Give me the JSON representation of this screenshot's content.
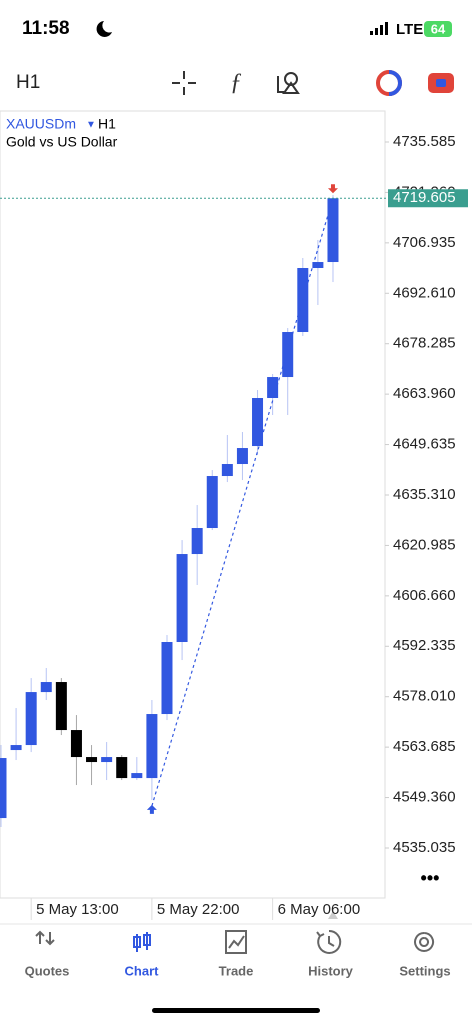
{
  "status_bar": {
    "time": "11:58",
    "network": "LTE",
    "battery": "64"
  },
  "toolbar": {
    "timeframe": "H1"
  },
  "chart_data": {
    "type": "candlestick",
    "symbol": "XAUUSDm",
    "timeframe": "H1",
    "description": "Gold vs US Dollar",
    "categories": [
      null,
      null,
      "5 May 13:00",
      null,
      null,
      null,
      null,
      null,
      null,
      null,
      "5 May 22:00",
      null,
      null,
      null,
      null,
      null,
      null,
      null,
      "6 May 06:00",
      null,
      null,
      null,
      null
    ],
    "open": [
      4543.54,
      4562.86,
      4564.28,
      4579.33,
      4582.18,
      4568.54,
      4560.87,
      4559.45,
      4560.87,
      4554.9,
      4554.9,
      4573.09,
      4593.55,
      4618.54,
      4625.93,
      4640.7,
      4644.11,
      4649.22,
      4662.86,
      4668.82,
      4681.61,
      4699.79,
      4701.49
    ],
    "high": [
      4564.28,
      4574.79,
      4583.31,
      4586.16,
      4583.31,
      4572.8,
      4564.28,
      4565.14,
      4561.44,
      4560.87,
      4577.07,
      4595.53,
      4622.51,
      4632.46,
      4642.4,
      4652.35,
      4653.2,
      4665.13,
      4669.68,
      4682.74,
      4702.63,
      4707.75,
      4720.53
    ],
    "low": [
      4541,
      4560.02,
      4562.29,
      4577.07,
      4567.12,
      4552.92,
      4552.92,
      4554.34,
      4554.34,
      4554.34,
      4548.65,
      4571.38,
      4588.43,
      4609.74,
      4625.36,
      4638.99,
      4639.56,
      4646.66,
      4658.03,
      4658.03,
      4680.47,
      4689.28,
      4695.81
    ],
    "close": [
      4560.59,
      4564.28,
      4579.33,
      4582.18,
      4568.54,
      4560.87,
      4559.45,
      4560.87,
      4554.9,
      4556.32,
      4573.09,
      4593.55,
      4618.54,
      4625.93,
      4640.7,
      4644.11,
      4648.65,
      4662.86,
      4668.82,
      4681.61,
      4699.79,
      4701.49,
      4719.605
    ],
    "up_color": "#3157e0",
    "down_color": "#000000",
    "ylim": [
      4520.83,
      4744.39
    ],
    "yticks": [
      4735.585,
      {
        "value": 4721.26,
        "label": "4721.260"
      },
      4706.935,
      {
        "value": 4692.61,
        "label": "4692.610"
      },
      4678.285,
      {
        "value": 4663.96,
        "label": "4663.960"
      },
      4649.635,
      {
        "value": 4635.31,
        "label": "4635.310"
      },
      4620.985,
      {
        "value": 4606.66,
        "label": "4606.660"
      },
      4592.335,
      {
        "value": 4578.01,
        "label": "4578.010"
      },
      4563.685,
      {
        "value": 4549.36,
        "label": "4549.360"
      },
      4535.035
    ],
    "current_price": 4719.605,
    "price_color": "#3a9e8f",
    "trade": {
      "entry_index": 10,
      "entry": 4547.0,
      "exit_index": 22,
      "exit": 4719.605
    }
  },
  "more": "•••",
  "bottom_nav": [
    "Quotes",
    "Chart",
    "Trade",
    "History",
    "Settings"
  ]
}
